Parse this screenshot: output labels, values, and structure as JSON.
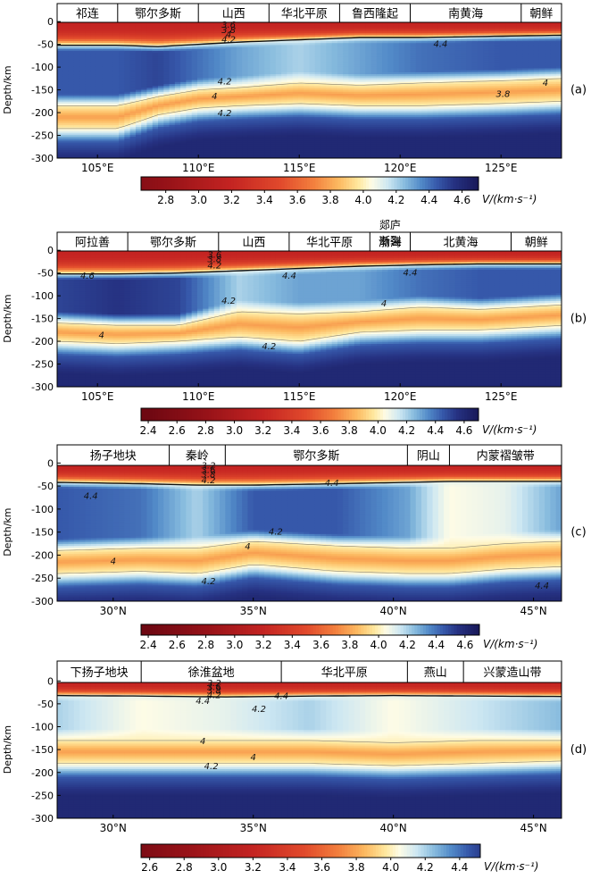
{
  "figure": {
    "ylabel": "Depth/km",
    "cbar_unit": "V/(km·s⁻¹)"
  },
  "chart_data": [
    {
      "type": "heatmap",
      "panel_label": "(a)",
      "xlabel": "",
      "ylabel": "Depth/km",
      "x_kind": "lon",
      "xlim": [
        103,
        128
      ],
      "xticks": [
        105,
        110,
        115,
        120,
        125
      ],
      "xtick_labels": [
        "105°E",
        "110°E",
        "115°E",
        "120°E",
        "125°E"
      ],
      "ylim": [
        -300,
        20
      ],
      "yticks": [
        0,
        -50,
        -100,
        -150,
        -200,
        -250,
        -300
      ],
      "ytick_labels": [
        "0",
        "-50",
        "-100",
        "-150",
        "-200",
        "-250",
        "-300"
      ],
      "regions": [
        {
          "name": "祁连",
          "start": 103,
          "end": 106
        },
        {
          "name": "鄂尔多斯",
          "start": 106,
          "end": 110
        },
        {
          "name": "山西",
          "start": 110,
          "end": 113.5
        },
        {
          "name": "华北平原",
          "start": 113.5,
          "end": 117
        },
        {
          "name": "鲁西隆起",
          "start": 117,
          "end": 120.5
        },
        {
          "name": "南黄海",
          "start": 120.5,
          "end": 126
        },
        {
          "name": "朝鲜",
          "start": 126,
          "end": 128
        }
      ],
      "contour_labels": [
        {
          "text": "3.6",
          "x": 111.5,
          "depth": -6
        },
        {
          "text": "3.8",
          "x": 111.5,
          "depth": -17
        },
        {
          "text": "4",
          "x": 111.5,
          "depth": -27
        },
        {
          "text": "4.2",
          "x": 111.5,
          "depth": -38
        },
        {
          "text": "4.4",
          "x": 122,
          "depth": -48
        },
        {
          "text": "4.2",
          "x": 111.3,
          "depth": -130
        },
        {
          "text": "4",
          "x": 110.8,
          "depth": -163
        },
        {
          "text": "4.2",
          "x": 111.3,
          "depth": -200
        },
        {
          "text": "3.8",
          "x": 125.1,
          "depth": -158
        },
        {
          "text": "4",
          "x": 127.2,
          "depth": -133
        }
      ],
      "colorbar": {
        "min": 2.65,
        "max": 4.7,
        "ticks": [
          2.8,
          3.0,
          3.2,
          3.4,
          3.6,
          3.8,
          4.0,
          4.2,
          4.4,
          4.6
        ],
        "unit": "V/(km·s⁻¹)"
      },
      "profile": [
        {
          "x": 103,
          "moho": -52,
          "lvz_top": -185,
          "lvz_bot": -235,
          "mid": 4.45
        },
        {
          "x": 106,
          "moho": -52,
          "lvz_top": -185,
          "lvz_bot": -235,
          "mid": 4.45
        },
        {
          "x": 108,
          "moho": -55,
          "lvz_top": -165,
          "lvz_bot": -205,
          "mid": 4.5
        },
        {
          "x": 110,
          "moho": -50,
          "lvz_top": -150,
          "lvz_bot": -190,
          "mid": 4.4
        },
        {
          "x": 112,
          "moho": -45,
          "lvz_top": -145,
          "lvz_bot": -185,
          "mid": 4.3
        },
        {
          "x": 115,
          "moho": -40,
          "lvz_top": -135,
          "lvz_bot": -180,
          "mid": 4.2
        },
        {
          "x": 118,
          "moho": -35,
          "lvz_top": -140,
          "lvz_bot": -185,
          "mid": 4.3
        },
        {
          "x": 121,
          "moho": -35,
          "lvz_top": -135,
          "lvz_bot": -185,
          "mid": 4.4
        },
        {
          "x": 125,
          "moho": -32,
          "lvz_top": -130,
          "lvz_bot": -180,
          "mid": 4.45
        },
        {
          "x": 128,
          "moho": -30,
          "lvz_top": -125,
          "lvz_bot": -175,
          "mid": 4.45
        }
      ]
    },
    {
      "type": "heatmap",
      "panel_label": "(b)",
      "xlabel": "",
      "ylabel": "Depth/km",
      "x_kind": "lon",
      "xlim": [
        103,
        128
      ],
      "xticks": [
        105,
        110,
        115,
        120,
        125
      ],
      "xtick_labels": [
        "105°E",
        "110°E",
        "115°E",
        "120°E",
        "125°E"
      ],
      "ylim": [
        -300,
        20
      ],
      "yticks": [
        0,
        -50,
        -100,
        -150,
        -200,
        -250,
        -300
      ],
      "ytick_labels": [
        "0",
        "-50",
        "-100",
        "-150",
        "-200",
        "-250",
        "-300"
      ],
      "regions": [
        {
          "name": "阿拉善",
          "start": 103,
          "end": 106.5
        },
        {
          "name": "鄂尔多斯",
          "start": 106.5,
          "end": 111
        },
        {
          "name": "山西",
          "start": 111,
          "end": 114.5
        },
        {
          "name": "华北平原",
          "start": 114.5,
          "end": 118.5
        },
        {
          "name": "渤海",
          "start": 118.5,
          "end": 120.5
        },
        {
          "name": "北黄海",
          "start": 120.5,
          "end": 125.5
        },
        {
          "name": "朝鲜",
          "start": 125.5,
          "end": 128
        }
      ],
      "fault_label": {
        "line1": "郯庐",
        "line2": "断裂",
        "x": 119.5
      },
      "contour_labels": [
        {
          "text": "3.6",
          "x": 110.8,
          "depth": -8
        },
        {
          "text": "3.8",
          "x": 110.8,
          "depth": -18
        },
        {
          "text": "4.2",
          "x": 110.8,
          "depth": -32
        },
        {
          "text": "4.6",
          "x": 104.5,
          "depth": -55
        },
        {
          "text": "4.4",
          "x": 114.5,
          "depth": -55
        },
        {
          "text": "4.4",
          "x": 120.5,
          "depth": -48
        },
        {
          "text": "4.2",
          "x": 111.5,
          "depth": -110
        },
        {
          "text": "4",
          "x": 119.2,
          "depth": -115
        },
        {
          "text": "4",
          "x": 105.2,
          "depth": -185
        },
        {
          "text": "4.2",
          "x": 113.5,
          "depth": -210
        }
      ],
      "colorbar": {
        "min": 2.35,
        "max": 4.7,
        "ticks": [
          2.4,
          2.6,
          2.8,
          3.0,
          3.2,
          3.4,
          3.6,
          3.8,
          4.0,
          4.2,
          4.4,
          4.6
        ],
        "unit": "V/(km·s⁻¹)"
      },
      "profile": [
        {
          "x": 103,
          "moho": -52,
          "lvz_top": -160,
          "lvz_bot": -200,
          "mid": 4.5
        },
        {
          "x": 106,
          "moho": -52,
          "lvz_top": -165,
          "lvz_bot": -205,
          "mid": 4.55
        },
        {
          "x": 109,
          "moho": -50,
          "lvz_top": -165,
          "lvz_bot": -200,
          "mid": 4.5
        },
        {
          "x": 112,
          "moho": -45,
          "lvz_top": -135,
          "lvz_bot": -190,
          "mid": 4.2
        },
        {
          "x": 115,
          "moho": -40,
          "lvz_top": -140,
          "lvz_bot": -200,
          "mid": 4.3
        },
        {
          "x": 118,
          "moho": -35,
          "lvz_top": -135,
          "lvz_bot": -180,
          "mid": 4.3
        },
        {
          "x": 121,
          "moho": -32,
          "lvz_top": -125,
          "lvz_bot": -175,
          "mid": 4.4
        },
        {
          "x": 124,
          "moho": -30,
          "lvz_top": -130,
          "lvz_bot": -175,
          "mid": 4.45
        },
        {
          "x": 128,
          "moho": -30,
          "lvz_top": -120,
          "lvz_bot": -165,
          "mid": 4.45
        }
      ]
    },
    {
      "type": "heatmap",
      "panel_label": "(c)",
      "xlabel": "",
      "ylabel": "Depth/km",
      "x_kind": "lat",
      "xlim": [
        28,
        46
      ],
      "xticks": [
        30,
        35,
        40,
        45
      ],
      "xtick_labels": [
        "30°N",
        "35°N",
        "40°N",
        "45°N"
      ],
      "ylim": [
        -300,
        20
      ],
      "yticks": [
        0,
        -50,
        -100,
        -150,
        -200,
        -250,
        -300
      ],
      "ytick_labels": [
        "0",
        "-50",
        "-100",
        "-150",
        "-200",
        "-250",
        "-300"
      ],
      "regions": [
        {
          "name": "扬子地块",
          "start": 28,
          "end": 32
        },
        {
          "name": "秦岭",
          "start": 32,
          "end": 34
        },
        {
          "name": "鄂尔多斯",
          "start": 34,
          "end": 40.5
        },
        {
          "name": "阴山",
          "start": 40.5,
          "end": 42
        },
        {
          "name": "内蒙褶皱带",
          "start": 42,
          "end": 46
        }
      ],
      "contour_labels": [
        {
          "text": "3.2",
          "x": 33.4,
          "depth": -4
        },
        {
          "text": "3.6",
          "x": 33.4,
          "depth": -14
        },
        {
          "text": "3.8",
          "x": 33.4,
          "depth": -24
        },
        {
          "text": "4.2",
          "x": 33.4,
          "depth": -36
        },
        {
          "text": "4.4",
          "x": 37.8,
          "depth": -42
        },
        {
          "text": "4.4",
          "x": 29.2,
          "depth": -70
        },
        {
          "text": "4.2",
          "x": 35.8,
          "depth": -148
        },
        {
          "text": "4",
          "x": 34.8,
          "depth": -180
        },
        {
          "text": "4",
          "x": 30.0,
          "depth": -212
        },
        {
          "text": "4.2",
          "x": 33.4,
          "depth": -255
        },
        {
          "text": "4.4",
          "x": 45.3,
          "depth": -265
        }
      ],
      "colorbar": {
        "min": 2.35,
        "max": 4.7,
        "ticks": [
          2.4,
          2.6,
          2.8,
          3.0,
          3.2,
          3.4,
          3.6,
          3.8,
          4.0,
          4.2,
          4.4,
          4.6
        ],
        "unit": "V/(km·s⁻¹)"
      },
      "profile": [
        {
          "x": 28,
          "moho": -42,
          "lvz_top": -190,
          "lvz_bot": -240,
          "mid": 4.45
        },
        {
          "x": 31,
          "moho": -45,
          "lvz_top": -185,
          "lvz_bot": -235,
          "mid": 4.4
        },
        {
          "x": 33,
          "moho": -48,
          "lvz_top": -185,
          "lvz_bot": -240,
          "mid": 4.2
        },
        {
          "x": 35,
          "moho": -48,
          "lvz_top": -170,
          "lvz_bot": -220,
          "mid": 4.45
        },
        {
          "x": 38,
          "moho": -45,
          "lvz_top": -180,
          "lvz_bot": -235,
          "mid": 4.45
        },
        {
          "x": 40.5,
          "moho": -42,
          "lvz_top": -185,
          "lvz_bot": -240,
          "mid": 4.3
        },
        {
          "x": 42,
          "moho": -40,
          "lvz_top": -185,
          "lvz_bot": -240,
          "mid": 4.05
        },
        {
          "x": 44,
          "moho": -40,
          "lvz_top": -175,
          "lvz_bot": -230,
          "mid": 4.1
        },
        {
          "x": 46,
          "moho": -40,
          "lvz_top": -170,
          "lvz_bot": -225,
          "mid": 4.3
        }
      ]
    },
    {
      "type": "heatmap",
      "panel_label": "(d)",
      "xlabel": "",
      "ylabel": "Depth/km",
      "x_kind": "lat",
      "xlim": [
        28,
        46
      ],
      "xticks": [
        30,
        35,
        40,
        45
      ],
      "xtick_labels": [
        "30°N",
        "35°N",
        "40°N",
        "45°N"
      ],
      "ylim": [
        -300,
        20
      ],
      "yticks": [
        0,
        -50,
        -100,
        -150,
        -200,
        -250,
        -300
      ],
      "ytick_labels": [
        "0",
        "-50",
        "-100",
        "-150",
        "-200",
        "-250",
        "-300"
      ],
      "regions": [
        {
          "name": "下扬子地块",
          "start": 28,
          "end": 31
        },
        {
          "name": "徐淮盆地",
          "start": 31,
          "end": 36
        },
        {
          "name": "华北平原",
          "start": 36,
          "end": 40.5
        },
        {
          "name": "燕山",
          "start": 40.5,
          "end": 42.5
        },
        {
          "name": "兴蒙造山带",
          "start": 42.5,
          "end": 46
        }
      ],
      "contour_labels": [
        {
          "text": "3.2",
          "x": 33.6,
          "depth": -3
        },
        {
          "text": "3.6",
          "x": 33.6,
          "depth": -12
        },
        {
          "text": "3.8",
          "x": 33.6,
          "depth": -20
        },
        {
          "text": "4.2",
          "x": 33.6,
          "depth": -30
        },
        {
          "text": "4.4",
          "x": 36.0,
          "depth": -32
        },
        {
          "text": "4.4",
          "x": 33.2,
          "depth": -42
        },
        {
          "text": "4.2",
          "x": 35.2,
          "depth": -60
        },
        {
          "text": "4",
          "x": 33.2,
          "depth": -130
        },
        {
          "text": "4",
          "x": 35.0,
          "depth": -165
        },
        {
          "text": "4.2",
          "x": 33.5,
          "depth": -185
        }
      ],
      "colorbar": {
        "min": 2.55,
        "max": 4.52,
        "ticks": [
          2.6,
          2.8,
          3.0,
          3.2,
          3.4,
          3.6,
          3.8,
          4.0,
          4.2,
          4.4
        ],
        "unit": "V/(km·s⁻¹)"
      },
      "profile": [
        {
          "x": 28,
          "moho": -32,
          "lvz_top": -130,
          "lvz_bot": -180,
          "mid": 4.2
        },
        {
          "x": 31,
          "moho": -33,
          "lvz_top": -130,
          "lvz_bot": -180,
          "mid": 4.05
        },
        {
          "x": 34,
          "moho": -35,
          "lvz_top": -130,
          "lvz_bot": -180,
          "mid": 4.1
        },
        {
          "x": 37,
          "moho": -33,
          "lvz_top": -130,
          "lvz_bot": -180,
          "mid": 4.2
        },
        {
          "x": 40,
          "moho": -32,
          "lvz_top": -135,
          "lvz_bot": -185,
          "mid": 4.05
        },
        {
          "x": 43,
          "moho": -33,
          "lvz_top": -130,
          "lvz_bot": -180,
          "mid": 4.15
        },
        {
          "x": 46,
          "moho": -34,
          "lvz_top": -130,
          "lvz_bot": -175,
          "mid": 4.25
        }
      ]
    }
  ]
}
